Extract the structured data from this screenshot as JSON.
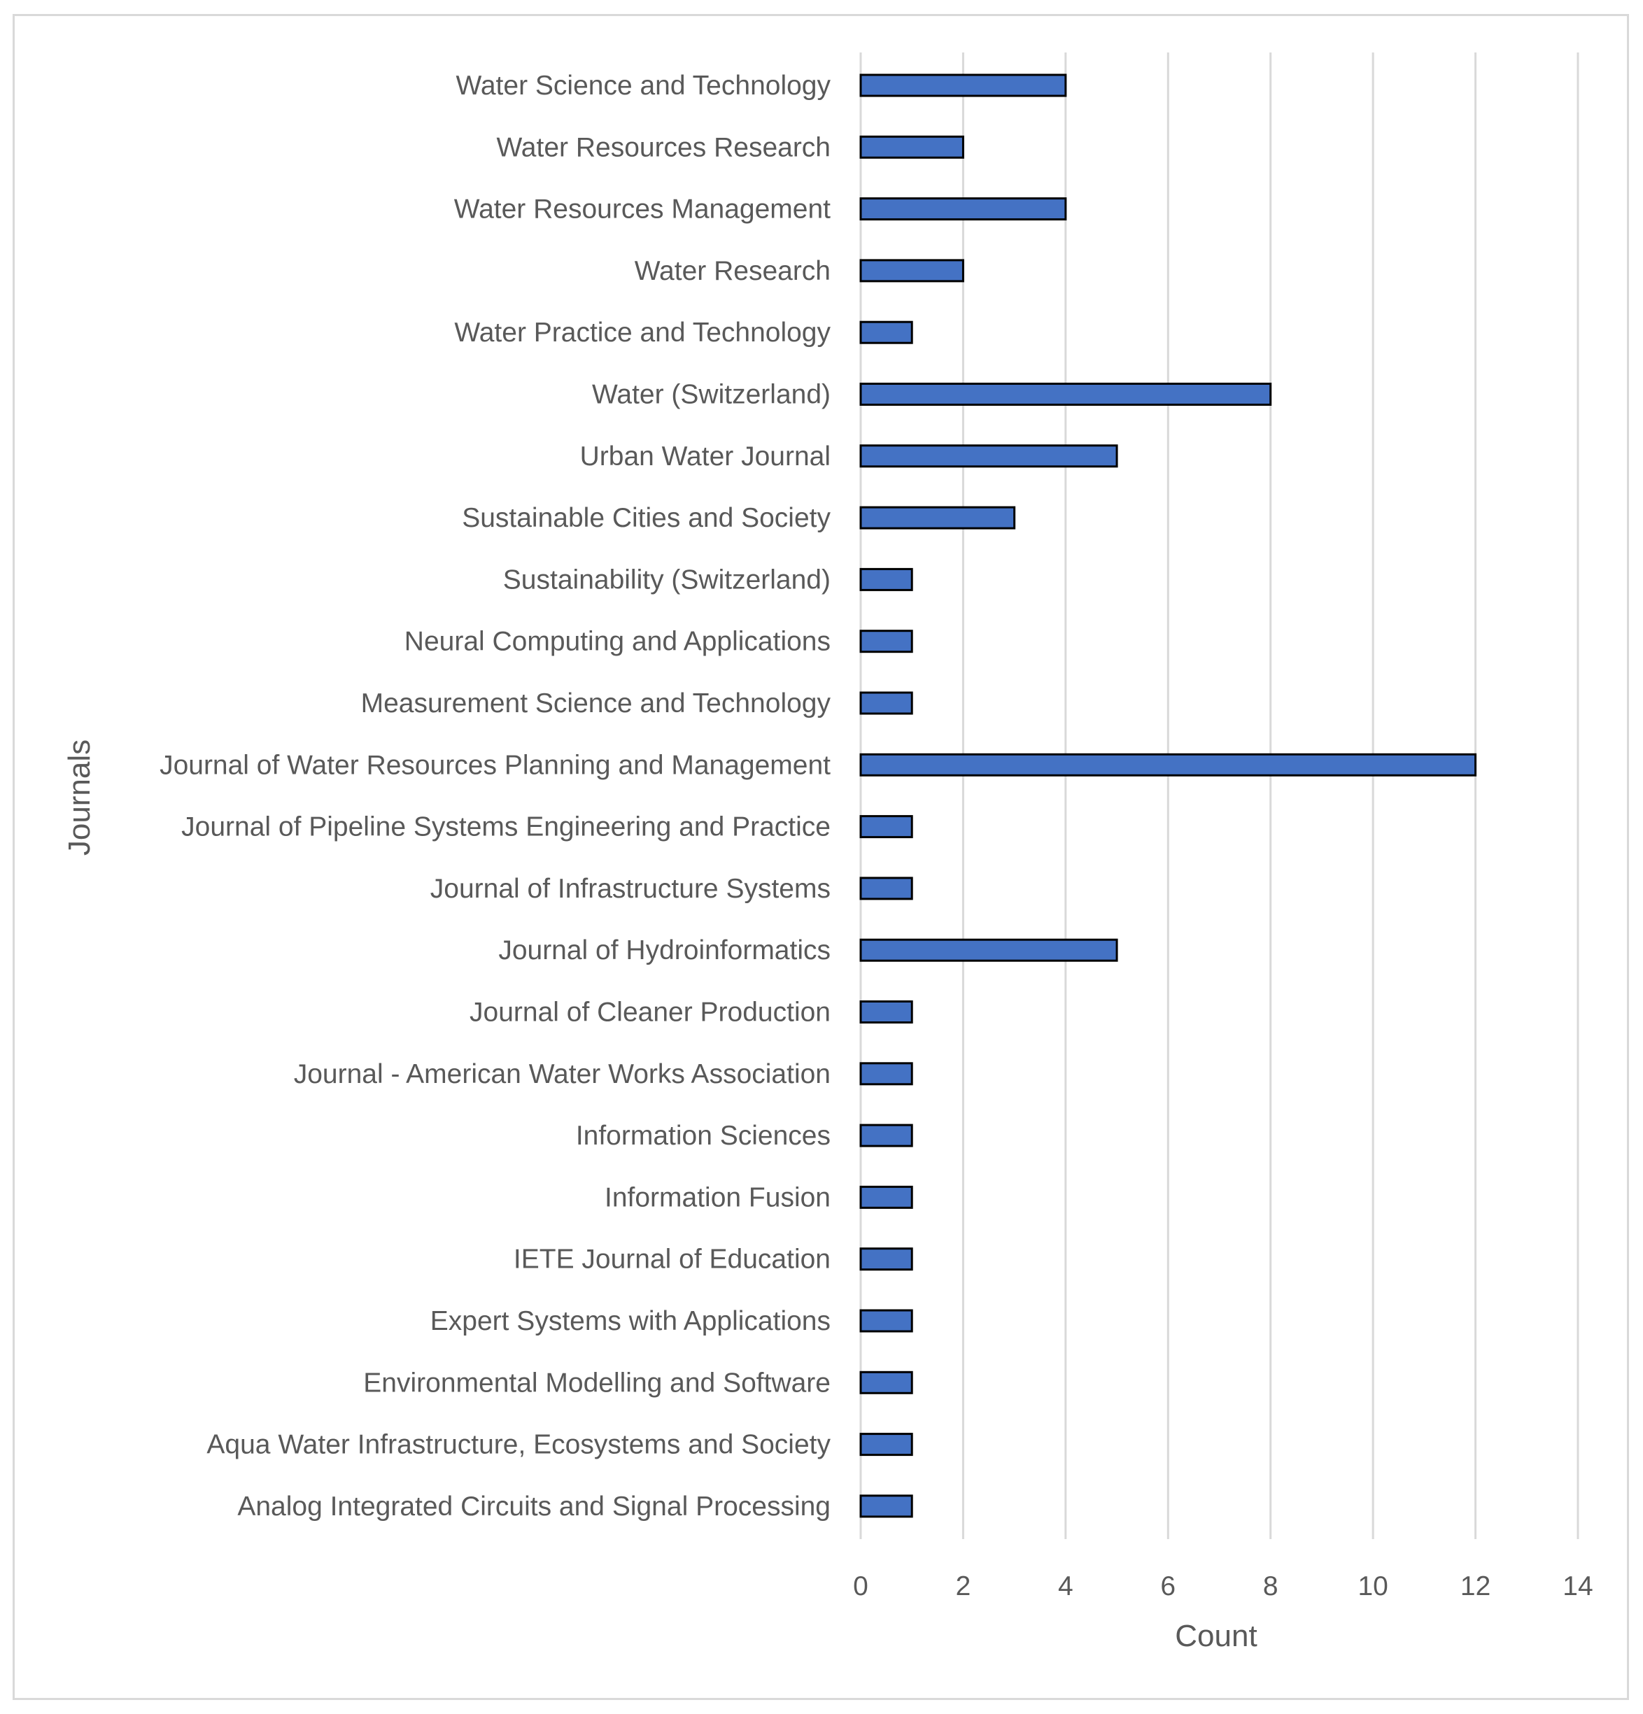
{
  "chart_data": {
    "type": "bar",
    "orientation": "horizontal",
    "title": "",
    "xlabel": "Count",
    "ylabel": "Journals",
    "xlim": [
      0,
      14
    ],
    "xticks": [
      0,
      2,
      4,
      6,
      8,
      10,
      12,
      14
    ],
    "grid": true,
    "legend": "none",
    "bar_color": "#4472C4",
    "bar_edge_color": "#000000",
    "categories": [
      "Water Science and Technology",
      "Water Resources Research",
      "Water Resources Management",
      "Water Research",
      "Water Practice and Technology",
      "Water (Switzerland)",
      "Urban Water Journal",
      "Sustainable Cities and Society",
      "Sustainability (Switzerland)",
      "Neural Computing and Applications",
      "Measurement Science and Technology",
      "Journal of Water Resources Planning and Management",
      "Journal of Pipeline Systems Engineering and Practice",
      "Journal of Infrastructure Systems",
      "Journal of Hydroinformatics",
      "Journal of Cleaner Production",
      "Journal - American Water Works Association",
      "Information Sciences",
      "Information Fusion",
      "IETE Journal of Education",
      "Expert Systems with Applications",
      "Environmental Modelling and Software",
      "Aqua Water Infrastructure, Ecosystems and Society",
      "Analog Integrated Circuits and Signal Processing"
    ],
    "values": [
      4,
      2,
      4,
      2,
      1,
      8,
      5,
      3,
      1,
      1,
      1,
      12,
      1,
      1,
      5,
      1,
      1,
      1,
      1,
      1,
      1,
      1,
      1,
      1
    ]
  }
}
